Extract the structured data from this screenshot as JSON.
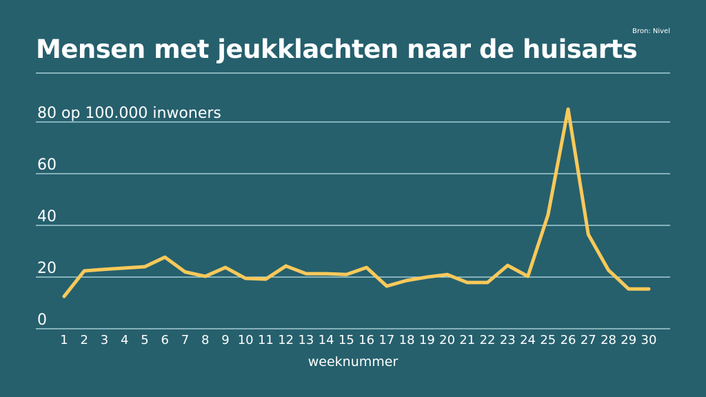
{
  "chart_data": {
    "type": "line",
    "title": "Mensen met jeukklachten naar de huisarts",
    "source": "Bron: Nivel",
    "xlabel": "weeknummer",
    "ylabel": "op 100.000 inwoners",
    "x": [
      1,
      2,
      3,
      4,
      5,
      6,
      7,
      8,
      9,
      10,
      11,
      12,
      13,
      14,
      15,
      16,
      17,
      18,
      19,
      20,
      21,
      22,
      23,
      24,
      25,
      26,
      27,
      28,
      29,
      30
    ],
    "values": [
      12.5,
      22.4,
      23,
      23.5,
      24,
      27.7,
      22,
      20.3,
      23.7,
      19.5,
      19.2,
      24.3,
      21.3,
      21.3,
      21,
      23.7,
      16.5,
      18.7,
      20,
      21,
      17.9,
      17.9,
      24.5,
      20.3,
      44,
      85,
      36.5,
      22.7,
      15.4,
      15.4
    ],
    "yticks": [
      0,
      20,
      40,
      60,
      80
    ],
    "ytick_labels": [
      "0",
      "20",
      "40",
      "60",
      "80 op 100.000 inwoners"
    ],
    "ylim": [
      0,
      80
    ],
    "grid": true,
    "colors": {
      "background": "#26606d",
      "line": "#f9c95a",
      "grid": "#bfe3e8"
    }
  }
}
